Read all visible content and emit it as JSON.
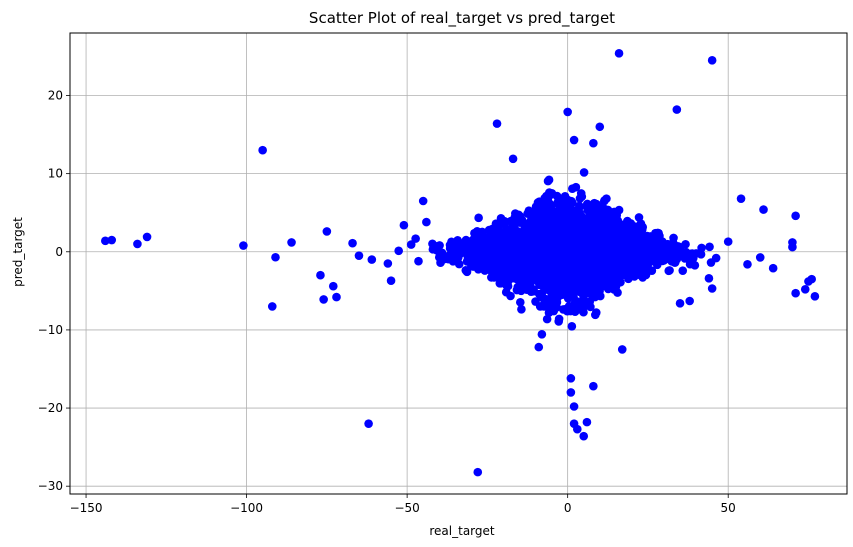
{
  "chart_data": {
    "type": "scatter",
    "title": "Scatter Plot of real_target vs pred_target",
    "xlabel": "real_target",
    "ylabel": "pred_target",
    "xlim": [
      -155,
      87
    ],
    "ylim": [
      -31,
      28
    ],
    "x_ticks": [
      -150,
      -100,
      -50,
      0,
      50
    ],
    "y_ticks": [
      -30,
      -20,
      -10,
      0,
      10,
      20
    ],
    "x_tick_labels": [
      "−150",
      "−100",
      "−50",
      "0",
      "50"
    ],
    "y_tick_labels": [
      "−30",
      "−20",
      "−10",
      "0",
      "10",
      "20"
    ],
    "grid": true,
    "marker_color": "#0000ff",
    "outliers": [
      {
        "x": -144,
        "y": 1.4
      },
      {
        "x": -142,
        "y": 1.5
      },
      {
        "x": -134,
        "y": 1.0
      },
      {
        "x": -131,
        "y": 1.9
      },
      {
        "x": -101,
        "y": 0.8
      },
      {
        "x": -95,
        "y": 13.0
      },
      {
        "x": -92,
        "y": -7.0
      },
      {
        "x": -91,
        "y": -0.7
      },
      {
        "x": -86,
        "y": 1.2
      },
      {
        "x": -77,
        "y": -3.0
      },
      {
        "x": -76,
        "y": -6.1
      },
      {
        "x": -75,
        "y": 2.6
      },
      {
        "x": -73,
        "y": -4.4
      },
      {
        "x": -72,
        "y": -5.8
      },
      {
        "x": -67,
        "y": 1.1
      },
      {
        "x": -65,
        "y": -0.5
      },
      {
        "x": -62,
        "y": -22.0
      },
      {
        "x": -61,
        "y": -1.0
      },
      {
        "x": -56,
        "y": -1.5
      },
      {
        "x": -55,
        "y": -3.7
      },
      {
        "x": -51,
        "y": 3.4
      },
      {
        "x": -45,
        "y": 6.5
      },
      {
        "x": -44,
        "y": 3.8
      },
      {
        "x": -28,
        "y": -28.2
      },
      {
        "x": -22,
        "y": 16.4
      },
      {
        "x": -17,
        "y": 11.9
      },
      {
        "x": 0,
        "y": 17.9
      },
      {
        "x": 2,
        "y": 14.3
      },
      {
        "x": 8,
        "y": 13.9
      },
      {
        "x": 10,
        "y": 16.0
      },
      {
        "x": 16,
        "y": 25.4
      },
      {
        "x": 34,
        "y": 18.2
      },
      {
        "x": 45,
        "y": 24.5
      },
      {
        "x": 54,
        "y": 6.8
      },
      {
        "x": 56,
        "y": -1.6
      },
      {
        "x": 61,
        "y": 5.4
      },
      {
        "x": 64,
        "y": -2.1
      },
      {
        "x": 70,
        "y": 1.2
      },
      {
        "x": 70,
        "y": 0.6
      },
      {
        "x": 71,
        "y": -5.3
      },
      {
        "x": 71,
        "y": 4.6
      },
      {
        "x": 74,
        "y": -4.8
      },
      {
        "x": 75,
        "y": -3.8
      },
      {
        "x": 76,
        "y": -3.5
      },
      {
        "x": 77,
        "y": -5.7
      },
      {
        "x": 1,
        "y": -16.2
      },
      {
        "x": 1,
        "y": -18.0
      },
      {
        "x": 2,
        "y": -19.8
      },
      {
        "x": 2,
        "y": -22.0
      },
      {
        "x": 3,
        "y": -22.7
      },
      {
        "x": 5,
        "y": -23.6
      },
      {
        "x": 6,
        "y": -21.8
      },
      {
        "x": 8,
        "y": -17.2
      },
      {
        "x": 17,
        "y": -12.5
      },
      {
        "x": -9,
        "y": -12.2
      },
      {
        "x": 45,
        "y": -4.7
      },
      {
        "x": 38,
        "y": -6.3
      },
      {
        "x": 35,
        "y": -6.6
      },
      {
        "x": 44,
        "y": -3.4
      },
      {
        "x": 50,
        "y": 1.3
      }
    ],
    "cluster": {
      "description": "dense blob of points centered near origin",
      "x_center": 0,
      "y_center": 0,
      "x_spread": 14,
      "y_spread": 3.2,
      "count": 3500
    }
  }
}
